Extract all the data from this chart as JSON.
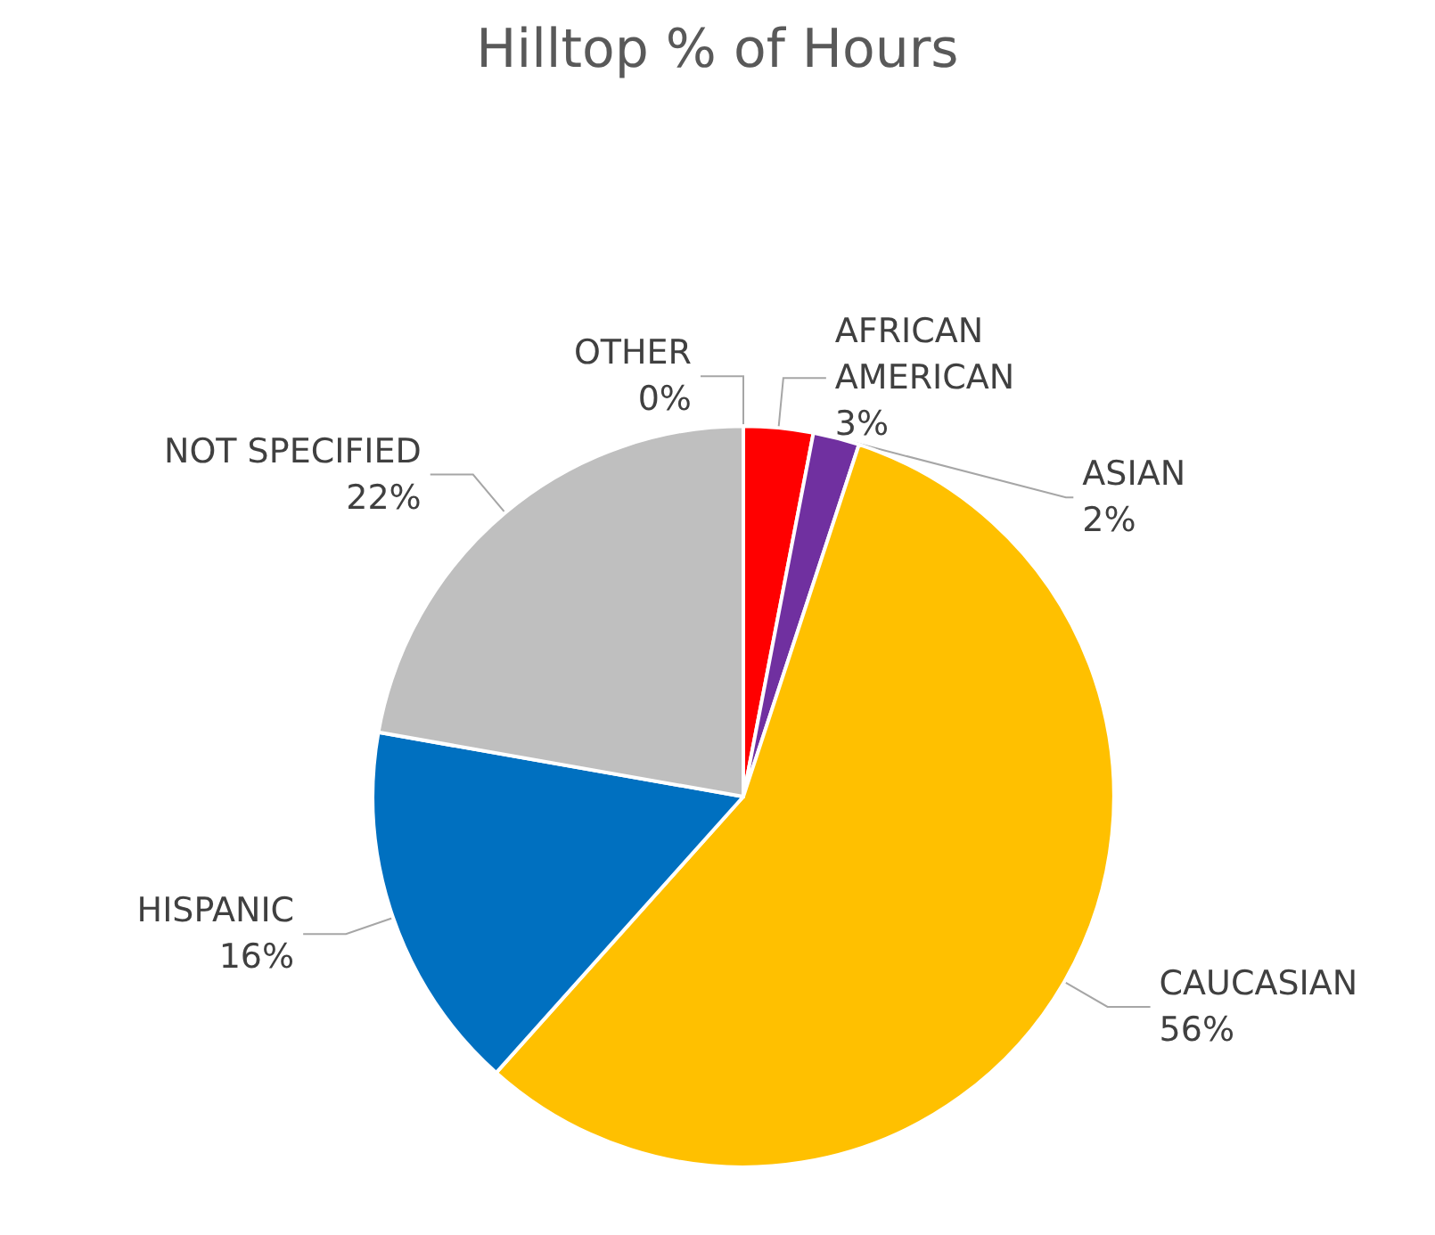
{
  "chart_data": {
    "type": "pie",
    "title": "Hilltop % of Hours",
    "categories": [
      "AFRICAN AMERICAN",
      "ASIAN",
      "CAUCASIAN",
      "HISPANIC",
      "NOT SPECIFIED",
      "OTHER"
    ],
    "values": [
      3,
      2,
      56,
      16,
      22,
      0
    ],
    "value_labels": [
      "3%",
      "2%",
      "56%",
      "16%",
      "22%",
      "0%"
    ],
    "colors": [
      "#ff0000",
      "#7030a0",
      "#ffc000",
      "#0070c0",
      "#bfbfbf",
      "#c00000"
    ],
    "legend": false
  }
}
